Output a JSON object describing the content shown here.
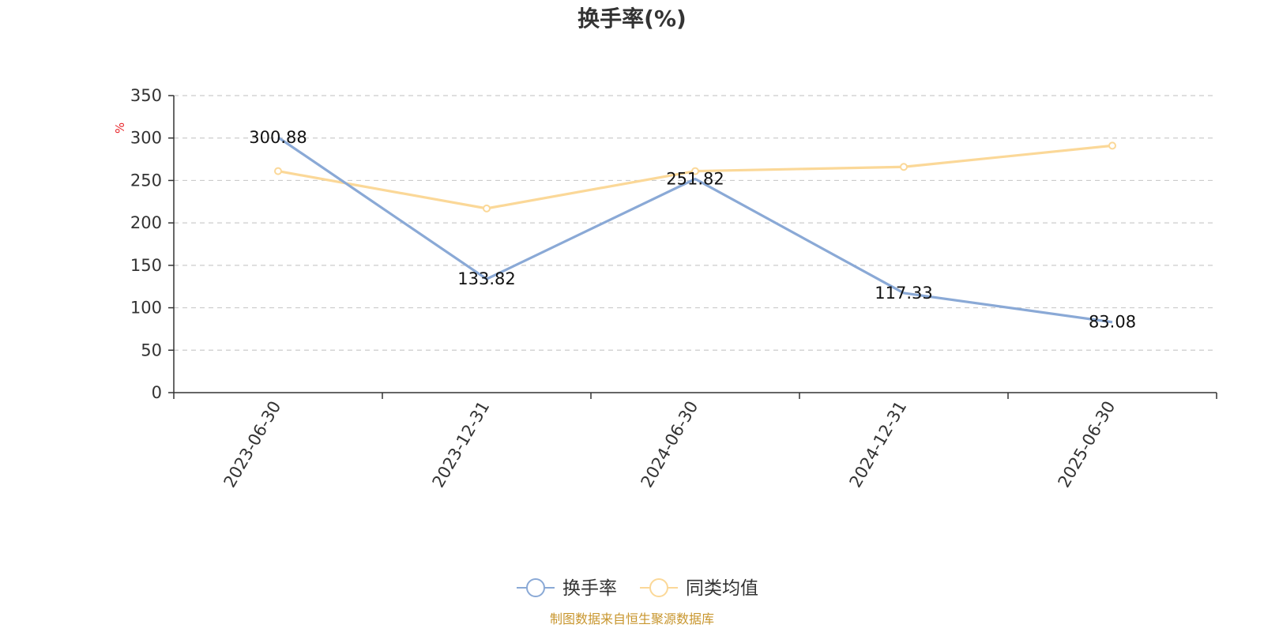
{
  "chart_data": {
    "type": "line",
    "title": "换手率(%)",
    "ylabel": "%",
    "categories": [
      "2023-06-30",
      "2023-12-31",
      "2024-06-30",
      "2024-12-31",
      "2025-06-30"
    ],
    "y_ticks": [
      0,
      50,
      100,
      150,
      200,
      250,
      300,
      350
    ],
    "ylim": [
      0,
      350
    ],
    "grid": "horizontal-dashed",
    "legend_position": "bottom-center",
    "series": [
      {
        "name": "换手率",
        "values": [
          300.88,
          133.82,
          251.82,
          117.33,
          83.08
        ],
        "data_labels": [
          "300.88",
          "133.82",
          "251.82",
          "117.33",
          "83.08"
        ],
        "color": "#8aa9d6"
      },
      {
        "name": "同类均值",
        "values": [
          261,
          217,
          261,
          266,
          291
        ],
        "color": "#fbd898"
      }
    ]
  },
  "source_text": "制图数据来自恒生聚源数据库"
}
